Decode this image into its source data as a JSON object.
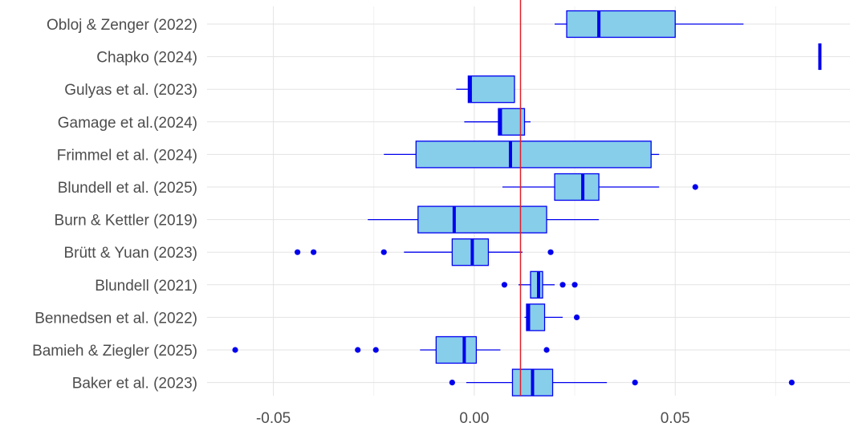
{
  "chart_data": {
    "type": "boxplot",
    "xlim": [
      -0.0665,
      0.0935
    ],
    "x_ticks": [
      {
        "value": -0.05,
        "label": "-0.05"
      },
      {
        "value": 0.0,
        "label": "0.00"
      },
      {
        "value": 0.05,
        "label": "0.05"
      }
    ],
    "x_minor_ticks": [
      -0.025,
      0.025,
      0.075
    ],
    "reference_line": {
      "value": 0.0115,
      "color": "#e0202a"
    },
    "box_fill": "#87ceeb",
    "box_stroke": "#0000ee",
    "grid": true,
    "categories": [
      {
        "label": "Obloj & Zenger (2022)",
        "whisker_low": 0.02,
        "q1": 0.023,
        "median": 0.031,
        "q3": 0.05,
        "whisker_high": 0.067,
        "outliers": []
      },
      {
        "label": "Chapko (2024)",
        "whisker_low": 0.086,
        "q1": 0.086,
        "median": 0.086,
        "q3": 0.086,
        "whisker_high": 0.086,
        "outliers": []
      },
      {
        "label": "Gulyas et al. (2023)",
        "whisker_low": -0.0045,
        "q1": -0.0015,
        "median": -0.001,
        "q3": 0.01,
        "whisker_high": 0.01,
        "outliers": []
      },
      {
        "label": "Gamage et al.(2024)",
        "whisker_low": -0.0025,
        "q1": 0.006,
        "median": 0.0065,
        "q3": 0.0125,
        "whisker_high": 0.014,
        "outliers": []
      },
      {
        "label": "Frimmel et al. (2024)",
        "whisker_low": -0.0225,
        "q1": -0.0145,
        "median": 0.009,
        "q3": 0.044,
        "whisker_high": 0.046,
        "outliers": []
      },
      {
        "label": "Blundell et al. (2025)",
        "whisker_low": 0.007,
        "q1": 0.02,
        "median": 0.027,
        "q3": 0.031,
        "whisker_high": 0.046,
        "outliers": [
          0.055
        ]
      },
      {
        "label": "Burn & Kettler (2019)",
        "whisker_low": -0.0265,
        "q1": -0.014,
        "median": -0.005,
        "q3": 0.018,
        "whisker_high": 0.031,
        "outliers": []
      },
      {
        "label": "Brütt & Yuan (2023)",
        "whisker_low": -0.0175,
        "q1": -0.0055,
        "median": -0.0005,
        "q3": 0.0035,
        "whisker_high": 0.012,
        "outliers": [
          -0.044,
          -0.04,
          -0.0225,
          0.019
        ]
      },
      {
        "label": "Blundell (2021)",
        "whisker_low": 0.011,
        "q1": 0.014,
        "median": 0.016,
        "q3": 0.017,
        "whisker_high": 0.02,
        "outliers": [
          0.0075,
          0.022,
          0.025
        ]
      },
      {
        "label": "Bennedsen et al. (2022)",
        "whisker_low": 0.0125,
        "q1": 0.013,
        "median": 0.0135,
        "q3": 0.0175,
        "whisker_high": 0.022,
        "outliers": [
          0.0255
        ]
      },
      {
        "label": "Bamieh & Ziegler (2025)",
        "whisker_low": -0.0135,
        "q1": -0.0095,
        "median": -0.0025,
        "q3": 0.0005,
        "whisker_high": 0.0065,
        "outliers": [
          -0.0595,
          -0.029,
          -0.0245,
          0.018
        ]
      },
      {
        "label": "Baker et al. (2023)",
        "whisker_low": -0.002,
        "q1": 0.0095,
        "median": 0.0145,
        "q3": 0.0195,
        "whisker_high": 0.033,
        "outliers": [
          -0.0055,
          0.04,
          0.079
        ]
      }
    ]
  }
}
